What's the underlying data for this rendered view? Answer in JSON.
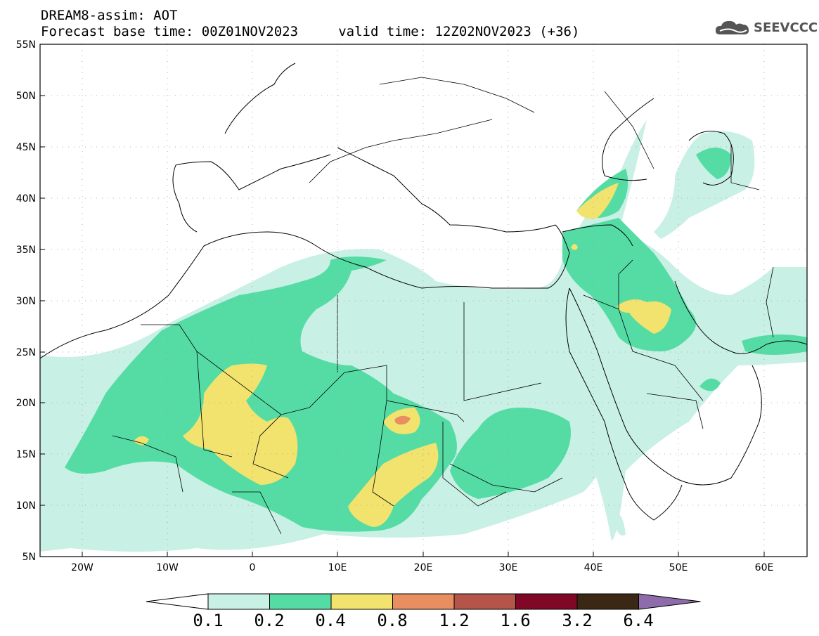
{
  "header": {
    "line1": "DREAM8-assim: AOT",
    "line2": "Forecast base time: 00Z01NOV2023     valid time: 12Z02NOV2023 (+36)"
  },
  "logo": {
    "text": "SEEVCCC",
    "icon": "cloud-icon"
  },
  "map": {
    "lon_range": [
      -25,
      65
    ],
    "lat_range": [
      5,
      55
    ],
    "lon_ticks": [
      "20W",
      "10W",
      "0",
      "10E",
      "20E",
      "30E",
      "40E",
      "50E",
      "60E"
    ],
    "lat_ticks": [
      "55N",
      "50N",
      "45N",
      "40N",
      "35N",
      "30N",
      "25N",
      "20N",
      "15N",
      "10N",
      "5N"
    ],
    "grid": "dotted"
  },
  "colorbar": {
    "labels": [
      "0.1",
      "0.2",
      "0.4",
      "0.8",
      "1.2",
      "1.6",
      "3.2",
      "6.4"
    ],
    "colors": [
      "#ffffff",
      "#c9f0e5",
      "#55dca5",
      "#f2e36e",
      "#e98e61",
      "#b5554a",
      "#800826",
      "#3b2814",
      "#8e6cab"
    ]
  }
}
